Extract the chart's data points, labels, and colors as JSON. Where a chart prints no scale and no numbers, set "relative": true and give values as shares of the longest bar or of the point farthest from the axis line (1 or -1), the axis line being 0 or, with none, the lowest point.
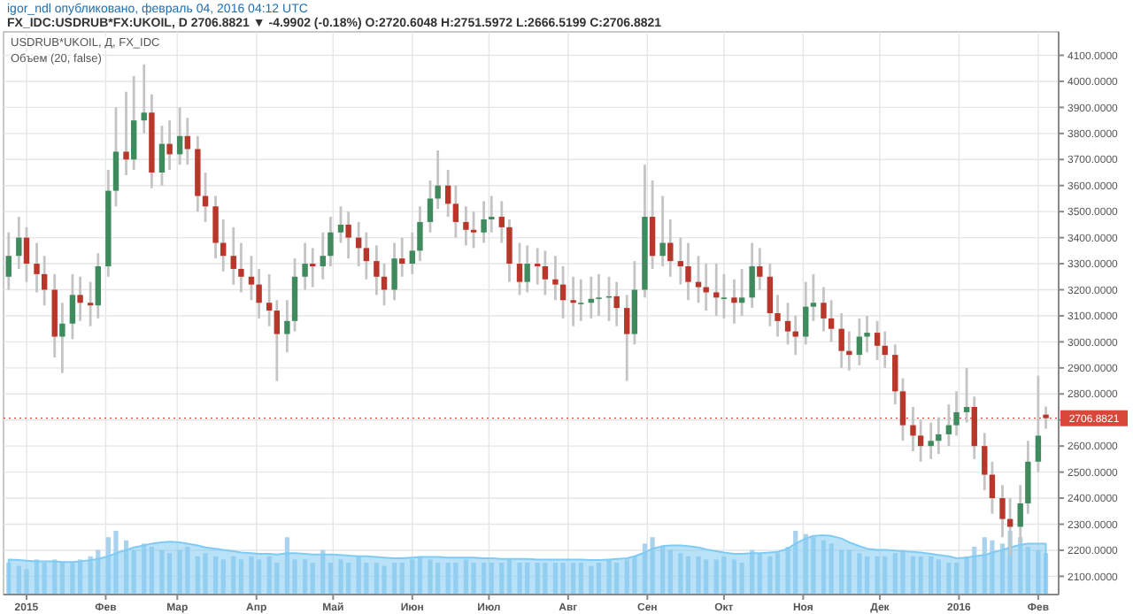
{
  "chart_data": [
    {
      "type": "candlestick",
      "title": "igor_ndl опубликовано, февраль 04, 2016 04:12 UTC",
      "subtitle": "FX_IDC:USDRUB*FX:UKOIL, D 2706.8821 ▼ -4.9902 (-0.18%) O:2720.6048 H:2751.5972 L:2666.5199 C:2706.8821",
      "annotations": [
        "USDRUB*UKOIL, Д, FX_IDC"
      ],
      "ref_lines": [
        {
          "axis": "y",
          "value": 2706.8821,
          "label": "2706.8821",
          "color": "#d9463a"
        }
      ],
      "x": [
        "2014-12-25",
        "2014-12-29",
        "2015-01-01",
        "2015-01-05",
        "2015-01-08",
        "2015-01-12",
        "2015-01-15",
        "2015-01-19",
        "2015-01-22",
        "2015-01-26",
        "2015-01-29",
        "2015-02-02",
        "2015-02-05",
        "2015-02-09",
        "2015-02-12",
        "2015-02-16",
        "2015-02-19",
        "2015-02-23",
        "2015-02-26",
        "2015-03-02",
        "2015-03-05",
        "2015-03-09",
        "2015-03-12",
        "2015-03-16",
        "2015-03-19",
        "2015-03-23",
        "2015-03-26",
        "2015-03-30",
        "2015-04-02",
        "2015-04-06",
        "2015-04-09",
        "2015-04-13",
        "2015-04-16",
        "2015-04-20",
        "2015-04-23",
        "2015-04-27",
        "2015-04-30",
        "2015-05-04",
        "2015-05-07",
        "2015-05-11",
        "2015-05-14",
        "2015-05-18",
        "2015-05-21",
        "2015-05-25",
        "2015-05-28",
        "2015-06-01",
        "2015-06-04",
        "2015-06-08",
        "2015-06-11",
        "2015-06-15",
        "2015-06-18",
        "2015-06-22",
        "2015-06-25",
        "2015-06-29",
        "2015-07-02",
        "2015-07-06",
        "2015-07-09",
        "2015-07-13",
        "2015-07-16",
        "2015-07-20",
        "2015-07-23",
        "2015-07-27",
        "2015-07-30",
        "2015-08-03",
        "2015-08-06",
        "2015-08-10",
        "2015-08-13",
        "2015-08-17",
        "2015-08-20",
        "2015-08-24",
        "2015-08-27",
        "2015-08-31",
        "2015-09-03",
        "2015-09-07",
        "2015-09-10",
        "2015-09-14",
        "2015-09-17",
        "2015-09-21",
        "2015-09-24",
        "2015-09-28",
        "2015-10-01",
        "2015-10-05",
        "2015-10-08",
        "2015-10-12",
        "2015-10-15",
        "2015-10-19",
        "2015-10-22",
        "2015-10-26",
        "2015-10-29",
        "2015-11-02",
        "2015-11-05",
        "2015-11-09",
        "2015-11-12",
        "2015-11-16",
        "2015-11-19",
        "2015-11-23",
        "2015-11-26",
        "2015-11-30",
        "2015-12-03",
        "2015-12-07",
        "2015-12-10",
        "2015-12-14",
        "2015-12-17",
        "2015-12-21",
        "2015-12-24",
        "2015-12-28",
        "2015-12-31",
        "2016-01-04",
        "2016-01-07",
        "2016-01-11",
        "2016-01-14",
        "2016-01-18",
        "2016-01-21",
        "2016-01-25",
        "2016-01-28",
        "2016-02-01",
        "2016-02-04"
      ],
      "ohlc": [
        [
          3250,
          3420,
          3200,
          3330
        ],
        [
          3330,
          3480,
          3280,
          3400
        ],
        [
          3400,
          3440,
          3230,
          3300
        ],
        [
          3300,
          3380,
          3190,
          3260
        ],
        [
          3260,
          3330,
          3140,
          3200
        ],
        [
          3200,
          3260,
          2940,
          3020
        ],
        [
          3020,
          3150,
          2880,
          3070
        ],
        [
          3070,
          3260,
          3010,
          3180
        ],
        [
          3180,
          3250,
          3080,
          3150
        ],
        [
          3150,
          3230,
          3060,
          3140
        ],
        [
          3140,
          3340,
          3090,
          3290
        ],
        [
          3290,
          3660,
          3250,
          3580
        ],
        [
          3580,
          3900,
          3520,
          3730
        ],
        [
          3730,
          3960,
          3640,
          3700
        ],
        [
          3700,
          4020,
          3660,
          3850
        ],
        [
          3850,
          4065,
          3800,
          3880
        ],
        [
          3880,
          3950,
          3590,
          3650
        ],
        [
          3650,
          3830,
          3600,
          3760
        ],
        [
          3760,
          3850,
          3660,
          3720
        ],
        [
          3720,
          3900,
          3680,
          3790
        ],
        [
          3790,
          3860,
          3680,
          3740
        ],
        [
          3740,
          3790,
          3500,
          3560
        ],
        [
          3560,
          3650,
          3460,
          3520
        ],
        [
          3520,
          3560,
          3320,
          3380
        ],
        [
          3380,
          3470,
          3270,
          3330
        ],
        [
          3330,
          3440,
          3220,
          3280
        ],
        [
          3280,
          3380,
          3190,
          3250
        ],
        [
          3250,
          3330,
          3160,
          3220
        ],
        [
          3220,
          3280,
          3090,
          3150
        ],
        [
          3150,
          3260,
          3060,
          3120
        ],
        [
          3120,
          3160,
          2850,
          3030
        ],
        [
          3030,
          3160,
          2960,
          3080
        ],
        [
          3080,
          3320,
          3040,
          3250
        ],
        [
          3250,
          3380,
          3200,
          3300
        ],
        [
          3300,
          3360,
          3210,
          3290
        ],
        [
          3290,
          3420,
          3240,
          3330
        ],
        [
          3330,
          3480,
          3290,
          3420
        ],
        [
          3420,
          3520,
          3380,
          3450
        ],
        [
          3450,
          3500,
          3320,
          3400
        ],
        [
          3400,
          3460,
          3290,
          3360
        ],
        [
          3360,
          3420,
          3240,
          3310
        ],
        [
          3310,
          3370,
          3180,
          3250
        ],
        [
          3250,
          3300,
          3140,
          3200
        ],
        [
          3200,
          3380,
          3160,
          3320
        ],
        [
          3320,
          3400,
          3250,
          3300
        ],
        [
          3300,
          3420,
          3260,
          3350
        ],
        [
          3350,
          3520,
          3310,
          3460
        ],
        [
          3460,
          3620,
          3420,
          3550
        ],
        [
          3550,
          3735,
          3510,
          3600
        ],
        [
          3600,
          3660,
          3480,
          3530
        ],
        [
          3530,
          3600,
          3400,
          3460
        ],
        [
          3460,
          3520,
          3370,
          3430
        ],
        [
          3430,
          3500,
          3360,
          3420
        ],
        [
          3420,
          3540,
          3380,
          3470
        ],
        [
          3470,
          3560,
          3420,
          3480
        ],
        [
          3480,
          3540,
          3380,
          3440
        ],
        [
          3440,
          3470,
          3230,
          3300
        ],
        [
          3300,
          3380,
          3180,
          3230
        ],
        [
          3230,
          3370,
          3190,
          3300
        ],
        [
          3300,
          3360,
          3220,
          3290
        ],
        [
          3290,
          3350,
          3180,
          3240
        ],
        [
          3240,
          3330,
          3160,
          3220
        ],
        [
          3220,
          3290,
          3090,
          3160
        ],
        [
          3160,
          3250,
          3060,
          3150
        ],
        [
          3150,
          3240,
          3080,
          3150
        ],
        [
          3150,
          3250,
          3090,
          3165
        ],
        [
          3165,
          3260,
          3100,
          3170
        ],
        [
          3170,
          3250,
          3080,
          3175
        ],
        [
          3175,
          3230,
          3060,
          3130
        ],
        [
          3130,
          3180,
          2850,
          3030
        ],
        [
          3030,
          3310,
          2990,
          3200
        ],
        [
          3200,
          3680,
          3170,
          3480
        ],
        [
          3480,
          3620,
          3280,
          3330
        ],
        [
          3330,
          3560,
          3290,
          3380
        ],
        [
          3380,
          3470,
          3250,
          3310
        ],
        [
          3310,
          3400,
          3220,
          3290
        ],
        [
          3290,
          3380,
          3160,
          3230
        ],
        [
          3230,
          3330,
          3150,
          3210
        ],
        [
          3210,
          3300,
          3120,
          3190
        ],
        [
          3190,
          3300,
          3100,
          3170
        ],
        [
          3170,
          3260,
          3090,
          3170
        ],
        [
          3170,
          3240,
          3070,
          3150
        ],
        [
          3150,
          3280,
          3100,
          3170
        ],
        [
          3170,
          3380,
          3130,
          3290
        ],
        [
          3290,
          3360,
          3200,
          3250
        ],
        [
          3250,
          3300,
          3060,
          3110
        ],
        [
          3110,
          3180,
          3020,
          3080
        ],
        [
          3080,
          3150,
          2990,
          3040
        ],
        [
          3040,
          3100,
          2950,
          3020
        ],
        [
          3020,
          3230,
          2990,
          3135
        ],
        [
          3135,
          3260,
          3080,
          3150
        ],
        [
          3150,
          3210,
          3040,
          3090
        ],
        [
          3090,
          3160,
          3000,
          3050
        ],
        [
          3050,
          3110,
          2900,
          2965
        ],
        [
          2965,
          3040,
          2890,
          2950
        ],
        [
          2950,
          3090,
          2910,
          3020
        ],
        [
          3020,
          3100,
          2960,
          3035
        ],
        [
          3035,
          3080,
          2930,
          2985
        ],
        [
          2985,
          3040,
          2900,
          2950
        ],
        [
          2950,
          2990,
          2760,
          2810
        ],
        [
          2810,
          2860,
          2620,
          2680
        ],
        [
          2680,
          2750,
          2580,
          2640
        ],
        [
          2640,
          2700,
          2540,
          2600
        ],
        [
          2600,
          2690,
          2550,
          2620
        ],
        [
          2620,
          2710,
          2570,
          2645
        ],
        [
          2645,
          2760,
          2600,
          2680
        ],
        [
          2680,
          2810,
          2640,
          2730
        ],
        [
          2730,
          2900,
          2690,
          2750
        ],
        [
          2750,
          2790,
          2550,
          2600
        ],
        [
          2600,
          2650,
          2430,
          2490
        ],
        [
          2490,
          2540,
          2340,
          2400
        ],
        [
          2400,
          2450,
          2250,
          2320
        ],
        [
          2320,
          2400,
          2180,
          2290
        ],
        [
          2290,
          2450,
          2230,
          2380
        ],
        [
          2380,
          2620,
          2340,
          2540
        ],
        [
          2540,
          2870,
          2500,
          2640
        ],
        [
          2720.6048,
          2751.5972,
          2666.5199,
          2706.8821
        ]
      ],
      "xlim": [
        "2014-12-23",
        "2016-02-09"
      ],
      "ylim": [
        2030,
        4190
      ],
      "xticks": [
        {
          "value": "2015-01-01",
          "label": "2015"
        },
        {
          "value": "2015-02-01",
          "label": "Фев"
        },
        {
          "value": "2015-03-01",
          "label": "Мар"
        },
        {
          "value": "2015-04-01",
          "label": "Апр"
        },
        {
          "value": "2015-05-01",
          "label": "Май"
        },
        {
          "value": "2015-06-01",
          "label": "Июн"
        },
        {
          "value": "2015-07-01",
          "label": "Июл"
        },
        {
          "value": "2015-08-01",
          "label": "Авг"
        },
        {
          "value": "2015-09-01",
          "label": "Сен"
        },
        {
          "value": "2015-10-01",
          "label": "Окт"
        },
        {
          "value": "2015-11-01",
          "label": "Ноя"
        },
        {
          "value": "2015-12-01",
          "label": "Дек"
        },
        {
          "value": "2016-01-01",
          "label": "2016"
        },
        {
          "value": "2016-02-01",
          "label": "Фев"
        }
      ],
      "yticks": [
        {
          "value": 2100,
          "label": "2100.0000"
        },
        {
          "value": 2200,
          "label": "2200.0000"
        },
        {
          "value": 2300,
          "label": "2300.0000"
        },
        {
          "value": 2400,
          "label": "2400.0000"
        },
        {
          "value": 2500,
          "label": "2500.0000"
        },
        {
          "value": 2600,
          "label": "2600.0000"
        },
        {
          "value": 2700,
          "label": null
        },
        {
          "value": 2800,
          "label": "2800.0000"
        },
        {
          "value": 2900,
          "label": "2900.0000"
        },
        {
          "value": 3000,
          "label": "3000.0000"
        },
        {
          "value": 3100,
          "label": "3100.0000"
        },
        {
          "value": 3200,
          "label": "3200.0000"
        },
        {
          "value": 3300,
          "label": "3300.0000"
        },
        {
          "value": 3400,
          "label": "3400.0000"
        },
        {
          "value": 3500,
          "label": "3500.0000"
        },
        {
          "value": 3600,
          "label": "3600.0000"
        },
        {
          "value": 3700,
          "label": "3700.0000"
        },
        {
          "value": 3800,
          "label": "3800.0000"
        },
        {
          "value": 3900,
          "label": "3900.0000"
        },
        {
          "value": 4000,
          "label": "4000.0000"
        },
        {
          "value": 4100,
          "label": "4100.0000"
        }
      ],
      "grid": true
    },
    {
      "type": "bar",
      "title": "Объем (20, false)",
      "relative": true,
      "xlim": [
        "2014-12-23",
        "2016-02-09"
      ],
      "x": [
        "2014-12-25",
        "2014-12-29",
        "2015-01-01",
        "2015-01-05",
        "2015-01-08",
        "2015-01-12",
        "2015-01-15",
        "2015-01-19",
        "2015-01-22",
        "2015-01-26",
        "2015-01-29",
        "2015-02-02",
        "2015-02-05",
        "2015-02-09",
        "2015-02-12",
        "2015-02-16",
        "2015-02-19",
        "2015-02-23",
        "2015-02-26",
        "2015-03-02",
        "2015-03-05",
        "2015-03-09",
        "2015-03-12",
        "2015-03-16",
        "2015-03-19",
        "2015-03-23",
        "2015-03-26",
        "2015-03-30",
        "2015-04-02",
        "2015-04-06",
        "2015-04-09",
        "2015-04-13",
        "2015-04-16",
        "2015-04-20",
        "2015-04-23",
        "2015-04-27",
        "2015-04-30",
        "2015-05-04",
        "2015-05-07",
        "2015-05-11",
        "2015-05-14",
        "2015-05-18",
        "2015-05-21",
        "2015-05-25",
        "2015-05-28",
        "2015-06-01",
        "2015-06-04",
        "2015-06-08",
        "2015-06-11",
        "2015-06-15",
        "2015-06-18",
        "2015-06-22",
        "2015-06-25",
        "2015-06-29",
        "2015-07-02",
        "2015-07-06",
        "2015-07-09",
        "2015-07-13",
        "2015-07-16",
        "2015-07-20",
        "2015-07-23",
        "2015-07-27",
        "2015-07-30",
        "2015-08-03",
        "2015-08-06",
        "2015-08-10",
        "2015-08-13",
        "2015-08-17",
        "2015-08-20",
        "2015-08-24",
        "2015-08-27",
        "2015-08-31",
        "2015-09-03",
        "2015-09-07",
        "2015-09-10",
        "2015-09-14",
        "2015-09-17",
        "2015-09-21",
        "2015-09-24",
        "2015-09-28",
        "2015-10-01",
        "2015-10-05",
        "2015-10-08",
        "2015-10-12",
        "2015-10-15",
        "2015-10-19",
        "2015-10-22",
        "2015-10-26",
        "2015-10-29",
        "2015-11-02",
        "2015-11-05",
        "2015-11-09",
        "2015-11-12",
        "2015-11-16",
        "2015-11-19",
        "2015-11-23",
        "2015-11-26",
        "2015-11-30",
        "2015-12-03",
        "2015-12-07",
        "2015-12-10",
        "2015-12-14",
        "2015-12-17",
        "2015-12-21",
        "2015-12-24",
        "2015-12-28",
        "2015-12-31",
        "2016-01-04",
        "2016-01-07",
        "2016-01-11",
        "2016-01-14",
        "2016-01-18",
        "2016-01-21",
        "2016-01-25",
        "2016-01-28",
        "2016-02-01",
        "2016-02-04"
      ],
      "series": [
        {
          "type": "bar",
          "color": "#a9d2ec",
          "values": [
            0.5,
            0.45,
            0.4,
            0.55,
            0.5,
            0.55,
            0.5,
            0.5,
            0.55,
            0.6,
            0.7,
            0.9,
            1.0,
            0.85,
            0.7,
            0.8,
            0.75,
            0.7,
            0.65,
            0.7,
            0.75,
            0.6,
            0.65,
            0.6,
            0.55,
            0.6,
            0.55,
            0.6,
            0.55,
            0.6,
            0.5,
            0.9,
            0.55,
            0.55,
            0.5,
            0.7,
            0.5,
            0.55,
            0.5,
            0.6,
            0.5,
            0.5,
            0.45,
            0.5,
            0.5,
            0.55,
            0.6,
            0.55,
            0.5,
            0.5,
            0.5,
            0.55,
            0.5,
            0.5,
            0.5,
            0.5,
            0.55,
            0.5,
            0.5,
            0.5,
            0.5,
            0.5,
            0.5,
            0.5,
            0.5,
            0.45,
            0.5,
            0.55,
            0.5,
            0.55,
            0.6,
            0.8,
            0.9,
            0.75,
            0.7,
            0.65,
            0.6,
            0.6,
            0.55,
            0.55,
            0.6,
            0.55,
            0.5,
            0.7,
            0.65,
            0.6,
            0.65,
            0.75,
            1.0,
            0.95,
            0.9,
            0.85,
            0.8,
            0.7,
            0.7,
            0.65,
            0.6,
            0.6,
            0.6,
            0.65,
            0.7,
            0.6,
            0.6,
            0.6,
            0.55,
            0.5,
            0.5,
            0.6,
            0.75,
            0.9,
            0.85,
            0.8,
            1.0,
            0.9,
            0.75,
            0.7,
            0.65
          ]
        },
        {
          "type": "area",
          "color": "#7fcbf3",
          "values": [
            0.55,
            0.54,
            0.53,
            0.52,
            0.52,
            0.52,
            0.51,
            0.51,
            0.52,
            0.54,
            0.56,
            0.6,
            0.65,
            0.7,
            0.74,
            0.77,
            0.8,
            0.82,
            0.83,
            0.82,
            0.8,
            0.77,
            0.74,
            0.72,
            0.7,
            0.68,
            0.66,
            0.65,
            0.64,
            0.64,
            0.63,
            0.65,
            0.65,
            0.64,
            0.63,
            0.63,
            0.63,
            0.62,
            0.61,
            0.6,
            0.6,
            0.59,
            0.58,
            0.57,
            0.57,
            0.58,
            0.59,
            0.59,
            0.59,
            0.58,
            0.58,
            0.58,
            0.58,
            0.57,
            0.57,
            0.56,
            0.56,
            0.56,
            0.56,
            0.55,
            0.55,
            0.55,
            0.55,
            0.55,
            0.55,
            0.54,
            0.54,
            0.55,
            0.56,
            0.57,
            0.6,
            0.66,
            0.72,
            0.76,
            0.77,
            0.77,
            0.76,
            0.74,
            0.71,
            0.68,
            0.66,
            0.64,
            0.64,
            0.65,
            0.65,
            0.66,
            0.67,
            0.72,
            0.8,
            0.88,
            0.92,
            0.93,
            0.92,
            0.88,
            0.82,
            0.76,
            0.72,
            0.7,
            0.7,
            0.69,
            0.68,
            0.67,
            0.66,
            0.64,
            0.62,
            0.6,
            0.57,
            0.58,
            0.6,
            0.62,
            0.66,
            0.7,
            0.74,
            0.78,
            0.8,
            0.8,
            0.8
          ]
        }
      ]
    }
  ]
}
